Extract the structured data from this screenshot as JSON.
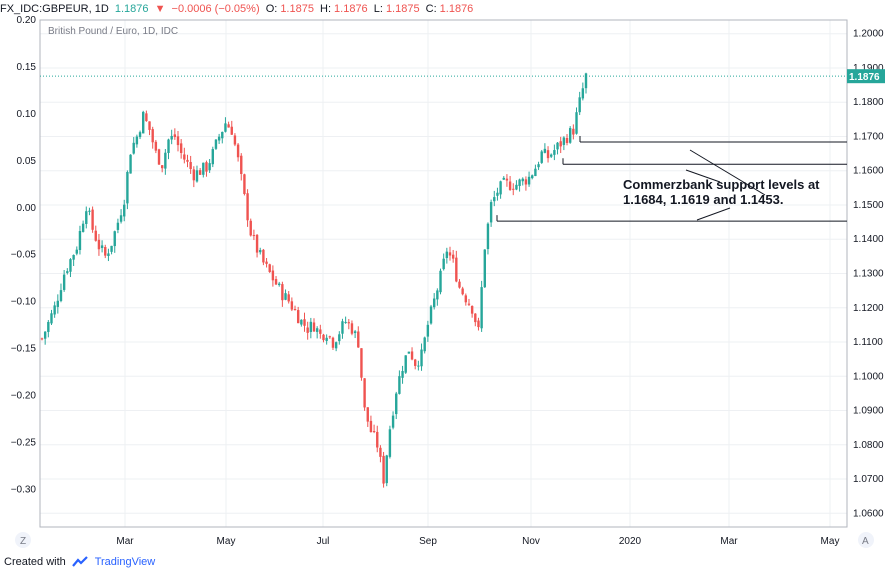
{
  "header": {
    "symbol": "FX_IDC:GBPEUR, 1D",
    "last": "1.1876",
    "change": "−0.0006 (−0.05%)",
    "o_label": "O:",
    "o_val": "1.1875",
    "h_label": "H:",
    "h_val": "1.1876",
    "l_label": "L:",
    "l_val": "1.1875",
    "c_label": "C:",
    "c_val": "1.1876"
  },
  "footer": {
    "created": "Created with",
    "brand": "TradingView"
  },
  "colors": {
    "up": "#26a69a",
    "down": "#ef5350",
    "grid": "#eef0f3",
    "text": "#131722",
    "priceline": "#26a69a"
  },
  "chart_data": {
    "type": "candlestick",
    "title": "British Pound / Euro, 1D, IDC",
    "right_axis": {
      "ticks": [
        "1.2000",
        "1.1900",
        "1.1800",
        "1.1700",
        "1.1600",
        "1.1500",
        "1.1400",
        "1.1300",
        "1.1200",
        "1.1100",
        "1.1000",
        "1.0900",
        "1.0800",
        "1.0700",
        "1.0600"
      ],
      "range": [
        1.056,
        1.204
      ]
    },
    "left_axis": {
      "ticks": [
        "0.20",
        "0.15",
        "0.10",
        "0.05",
        "0.00",
        "−0.05",
        "−0.10",
        "−0.15",
        "−0.20",
        "−0.25",
        "−0.30"
      ],
      "range": [
        -0.34,
        0.2
      ]
    },
    "x_ticks": [
      "Mar",
      "May",
      "Jul",
      "Sep",
      "Nov",
      "2020",
      "Mar",
      "May"
    ],
    "corner_labels": {
      "left": "Z",
      "right": "A"
    },
    "last_price_label": "1.1876",
    "support_levels": [
      1.1684,
      1.1619,
      1.1453
    ],
    "annotation": [
      "Commerzbank support levels at",
      "1.1684, 1.1619 and 1.1453."
    ],
    "close_path": [
      [
        0,
        1.111
      ],
      [
        4,
        1.12
      ],
      [
        7,
        1.13
      ],
      [
        11,
        1.138
      ],
      [
        14,
        1.15
      ],
      [
        16,
        1.143
      ],
      [
        18,
        1.138
      ],
      [
        20,
        1.135
      ],
      [
        22,
        1.139
      ],
      [
        24,
        1.145
      ],
      [
        26,
        1.152
      ],
      [
        28,
        1.166
      ],
      [
        30,
        1.17
      ],
      [
        32,
        1.176
      ],
      [
        34,
        1.172
      ],
      [
        36,
        1.165
      ],
      [
        38,
        1.162
      ],
      [
        40,
        1.169
      ],
      [
        42,
        1.17
      ],
      [
        44,
        1.165
      ],
      [
        46,
        1.162
      ],
      [
        48,
        1.159
      ],
      [
        50,
        1.16
      ],
      [
        52,
        1.161
      ],
      [
        54,
        1.165
      ],
      [
        56,
        1.17
      ],
      [
        58,
        1.174
      ],
      [
        60,
        1.172
      ],
      [
        62,
        1.163
      ],
      [
        64,
        1.152
      ],
      [
        66,
        1.142
      ],
      [
        68,
        1.137
      ],
      [
        70,
        1.133
      ],
      [
        72,
        1.13
      ],
      [
        74,
        1.127
      ],
      [
        76,
        1.124
      ],
      [
        78,
        1.122
      ],
      [
        80,
        1.119
      ],
      [
        82,
        1.116
      ],
      [
        84,
        1.114
      ],
      [
        86,
        1.115
      ],
      [
        88,
        1.112
      ],
      [
        90,
        1.113
      ],
      [
        92,
        1.11
      ],
      [
        94,
        1.113
      ],
      [
        96,
        1.116
      ],
      [
        98,
        1.114
      ],
      [
        100,
        1.11
      ],
      [
        102,
        1.09
      ],
      [
        104,
        1.084
      ],
      [
        106,
        1.08
      ],
      [
        108,
        1.07
      ],
      [
        110,
        1.085
      ],
      [
        112,
        1.096
      ],
      [
        114,
        1.103
      ],
      [
        116,
        1.108
      ],
      [
        118,
        1.104
      ],
      [
        120,
        1.106
      ],
      [
        122,
        1.115
      ],
      [
        124,
        1.122
      ],
      [
        126,
        1.129
      ],
      [
        128,
        1.137
      ],
      [
        130,
        1.133
      ],
      [
        132,
        1.126
      ],
      [
        134,
        1.123
      ],
      [
        136,
        1.12
      ],
      [
        138,
        1.113
      ],
      [
        140,
        1.138
      ],
      [
        142,
        1.15
      ],
      [
        144,
        1.154
      ],
      [
        146,
        1.156
      ],
      [
        148,
        1.156
      ],
      [
        150,
        1.156
      ],
      [
        152,
        1.157
      ],
      [
        154,
        1.158
      ],
      [
        156,
        1.161
      ],
      [
        158,
        1.165
      ],
      [
        160,
        1.164
      ],
      [
        162,
        1.166
      ],
      [
        164,
        1.168
      ],
      [
        166,
        1.17
      ],
      [
        168,
        1.172
      ],
      [
        170,
        1.18
      ],
      [
        172,
        1.1876
      ]
    ],
    "ohlc": {
      "note": "daily OHLC bars ~Feb 2019 – Dec 2019 (172 trading days)"
    }
  }
}
